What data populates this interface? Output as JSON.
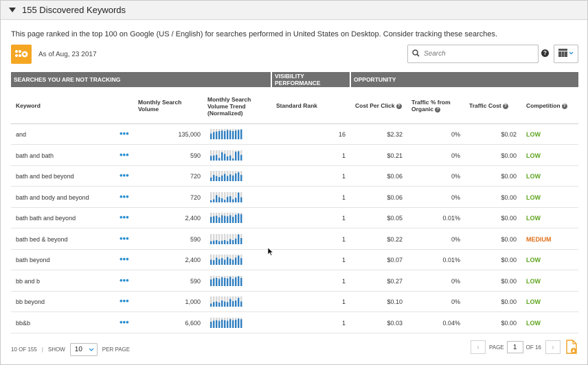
{
  "panel": {
    "title": "155 Discovered Keywords"
  },
  "description": "This page ranked in the top 100 on Google (US / English) for searches performed in United States on Desktop. Consider tracking these searches.",
  "as_of": "As of Aug, 23 2017",
  "search": {
    "placeholder": "Search",
    "value": ""
  },
  "icons": {
    "logo": "rank-logo-icon",
    "search": "search-icon",
    "help": "help-icon",
    "view": "table-view-icon",
    "export": "export-file-icon",
    "more": "more-dots-icon"
  },
  "colors": {
    "accent": "#2b8fd0",
    "logo": "#f5a623",
    "low": "#5ea51f",
    "medium": "#e0701b",
    "group_bar": "#707070"
  },
  "groups": [
    "SEARCHES YOU ARE NOT TRACKING",
    "VISIBILITY PERFORMANCE",
    "OPPORTUNITY"
  ],
  "columns": {
    "keyword": "Keyword",
    "volume": "Monthly Search Volume",
    "trend": "Monthly Search Volume Trend (Normalized)",
    "rank": "Standard Rank",
    "cpc": "Cost Per Click",
    "traffic_pct": "Traffic % from Organic",
    "traffic_cost": "Traffic Cost",
    "competition": "Competition"
  },
  "rows": [
    {
      "keyword": "and",
      "more": "•••",
      "volume": "135,000",
      "rank": "16",
      "cpc": "$2.32",
      "traffic_pct": "0%",
      "traffic_cost": "$0.02",
      "competition": "LOW",
      "level": "low",
      "trend": [
        0.55,
        0.7,
        0.75,
        0.8,
        0.85,
        0.8,
        0.9,
        0.85,
        0.8,
        0.85,
        0.9,
        0.95
      ]
    },
    {
      "keyword": "bath and bath",
      "more": "•••",
      "volume": "590",
      "rank": "1",
      "cpc": "$0.21",
      "traffic_pct": "0%",
      "traffic_cost": "$0.00",
      "competition": "LOW",
      "level": "low",
      "trend": [
        0.45,
        0.5,
        0.55,
        0.25,
        0.8,
        0.65,
        0.4,
        0.5,
        0.2,
        0.85,
        0.9,
        0.55
      ]
    },
    {
      "keyword": "bath and bed beyond",
      "more": "•••",
      "volume": "720",
      "rank": "1",
      "cpc": "$0.06",
      "traffic_pct": "0%",
      "traffic_cost": "$0.00",
      "competition": "LOW",
      "level": "low",
      "trend": [
        0.35,
        0.6,
        0.5,
        0.4,
        0.55,
        0.7,
        0.5,
        0.65,
        0.55,
        0.75,
        0.85,
        0.6
      ]
    },
    {
      "keyword": "bath and body and beyond",
      "more": "•••",
      "volume": "720",
      "rank": "1",
      "cpc": "$0.06",
      "traffic_pct": "0%",
      "traffic_cost": "$0.00",
      "competition": "LOW",
      "level": "low",
      "trend": [
        0.2,
        0.3,
        0.7,
        0.5,
        0.4,
        0.25,
        0.55,
        0.6,
        0.3,
        0.45,
        0.95,
        0.5
      ]
    },
    {
      "keyword": "bath bath and beyond",
      "more": "•••",
      "volume": "2,400",
      "rank": "1",
      "cpc": "$0.05",
      "traffic_pct": "0.01%",
      "traffic_cost": "$0.00",
      "competition": "LOW",
      "level": "low",
      "trend": [
        0.6,
        0.65,
        0.7,
        0.55,
        0.75,
        0.7,
        0.65,
        0.75,
        0.6,
        0.8,
        0.9,
        0.85
      ]
    },
    {
      "keyword": "bath bed & beyond",
      "more": "•••",
      "volume": "590",
      "rank": "1",
      "cpc": "$0.22",
      "traffic_pct": "0%",
      "traffic_cost": "$0.00",
      "competition": "MEDIUM",
      "level": "medium",
      "trend": [
        0.3,
        0.35,
        0.4,
        0.3,
        0.35,
        0.4,
        0.3,
        0.5,
        0.4,
        0.55,
        0.95,
        0.6
      ]
    },
    {
      "keyword": "bath beyond",
      "more": "•••",
      "volume": "2,400",
      "rank": "1",
      "cpc": "$0.07",
      "traffic_pct": "0.01%",
      "traffic_cost": "$0.00",
      "competition": "LOW",
      "level": "low",
      "trend": [
        0.5,
        0.45,
        0.7,
        0.55,
        0.65,
        0.5,
        0.75,
        0.6,
        0.5,
        0.7,
        0.9,
        0.65
      ]
    },
    {
      "keyword": "bb and b",
      "more": "•••",
      "volume": "590",
      "rank": "1",
      "cpc": "$0.27",
      "traffic_pct": "0%",
      "traffic_cost": "$0.00",
      "competition": "LOW",
      "level": "low",
      "trend": [
        0.65,
        0.75,
        0.8,
        0.7,
        0.85,
        0.8,
        0.75,
        0.9,
        0.7,
        0.85,
        0.95,
        0.8
      ]
    },
    {
      "keyword": "bb beyond",
      "more": "•••",
      "volume": "1,000",
      "rank": "1",
      "cpc": "$0.10",
      "traffic_pct": "0%",
      "traffic_cost": "$0.00",
      "competition": "LOW",
      "level": "low",
      "trend": [
        0.3,
        0.45,
        0.5,
        0.4,
        0.6,
        0.5,
        0.45,
        0.75,
        0.55,
        0.6,
        0.85,
        0.5
      ]
    },
    {
      "keyword": "bb&b",
      "more": "•••",
      "volume": "6,600",
      "rank": "1",
      "cpc": "$0.03",
      "traffic_pct": "0.04%",
      "traffic_cost": "$0.00",
      "competition": "LOW",
      "level": "low",
      "trend": [
        0.6,
        0.7,
        0.75,
        0.7,
        0.8,
        0.75,
        0.7,
        0.85,
        0.75,
        0.8,
        0.9,
        0.85
      ]
    }
  ],
  "footer": {
    "range": "10 OF 155",
    "show_label": "SHOW",
    "per_page": "10",
    "per_page_label": "PER PAGE",
    "page_label": "PAGE",
    "page_value": "1",
    "of_pages": "OF 16"
  }
}
